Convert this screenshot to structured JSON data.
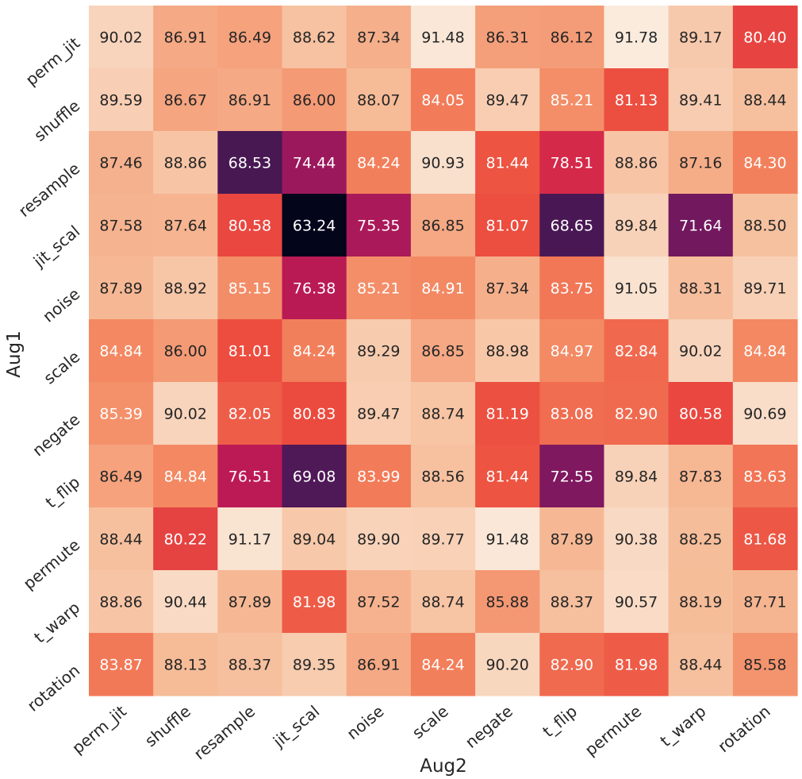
{
  "chart_data": {
    "type": "heatmap",
    "title": "",
    "xlabel": "Aug2",
    "ylabel": "Aug1",
    "x_categories": [
      "perm_jit",
      "shuffle",
      "resample",
      "jit_scal",
      "noise",
      "scale",
      "negate",
      "t_flip",
      "permute",
      "t_warp",
      "rotation"
    ],
    "y_categories": [
      "perm_jit",
      "shuffle",
      "resample",
      "jit_scal",
      "noise",
      "scale",
      "negate",
      "t_flip",
      "permute",
      "t_warp",
      "rotation"
    ],
    "values": [
      [
        90.02,
        86.91,
        86.49,
        88.62,
        87.34,
        91.48,
        86.31,
        86.12,
        91.78,
        89.17,
        80.4
      ],
      [
        89.59,
        86.67,
        86.91,
        86.0,
        88.07,
        84.05,
        89.47,
        85.21,
        81.13,
        89.41,
        88.44
      ],
      [
        87.46,
        88.86,
        68.53,
        74.44,
        84.24,
        90.93,
        81.44,
        78.51,
        88.86,
        87.16,
        84.3
      ],
      [
        87.58,
        87.64,
        80.58,
        63.24,
        75.35,
        86.85,
        81.07,
        68.65,
        89.84,
        71.64,
        88.5
      ],
      [
        87.89,
        88.92,
        85.15,
        76.38,
        85.21,
        84.91,
        87.34,
        83.75,
        91.05,
        88.31,
        89.71
      ],
      [
        84.84,
        86.0,
        81.01,
        84.24,
        89.29,
        86.85,
        88.98,
        84.97,
        82.84,
        90.02,
        84.84
      ],
      [
        85.39,
        90.02,
        82.05,
        80.83,
        89.47,
        88.74,
        81.19,
        83.08,
        82.9,
        80.58,
        90.69
      ],
      [
        86.49,
        84.84,
        76.51,
        69.08,
        83.99,
        88.56,
        81.44,
        72.55,
        89.84,
        87.83,
        83.63
      ],
      [
        88.44,
        80.22,
        91.17,
        89.04,
        89.9,
        89.77,
        91.48,
        87.89,
        90.38,
        88.25,
        81.68
      ],
      [
        88.86,
        90.44,
        87.89,
        81.98,
        87.52,
        88.74,
        85.88,
        88.37,
        90.57,
        88.19,
        87.71
      ],
      [
        83.87,
        88.13,
        88.37,
        89.35,
        86.91,
        84.24,
        90.2,
        82.9,
        81.98,
        88.44,
        85.58
      ]
    ],
    "value_format": "2 decimals",
    "colormap": "rocket",
    "colorbar": false,
    "grid": false
  }
}
